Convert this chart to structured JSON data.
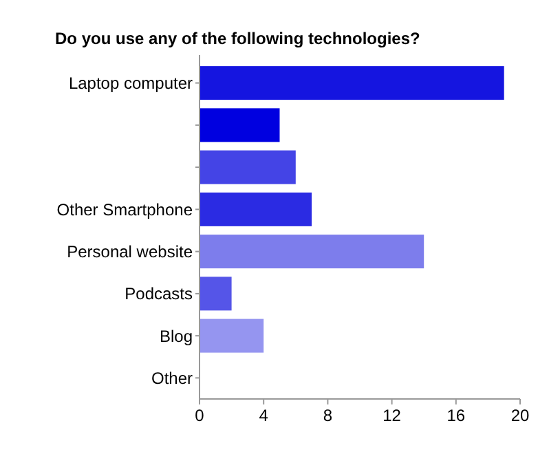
{
  "chart_data": {
    "type": "bar",
    "orientation": "horizontal",
    "title": "Do you use any of the following technologies?",
    "categories": [
      "Laptop computer",
      null,
      null,
      "Other Smartphone",
      "Personal website",
      "Podcasts",
      "Blog",
      "Other"
    ],
    "values": [
      19,
      5,
      6,
      7,
      14,
      2,
      4,
      0
    ],
    "colors": [
      "#1515e0",
      "#0000e0",
      "#4444e6",
      "#2b2be3",
      "#7d7dec",
      "#5555e8",
      "#9595f0",
      "#6a6aea"
    ],
    "xlim": [
      0,
      20
    ],
    "xticks": [
      0,
      4,
      8,
      12,
      16,
      20
    ],
    "grid": false
  }
}
